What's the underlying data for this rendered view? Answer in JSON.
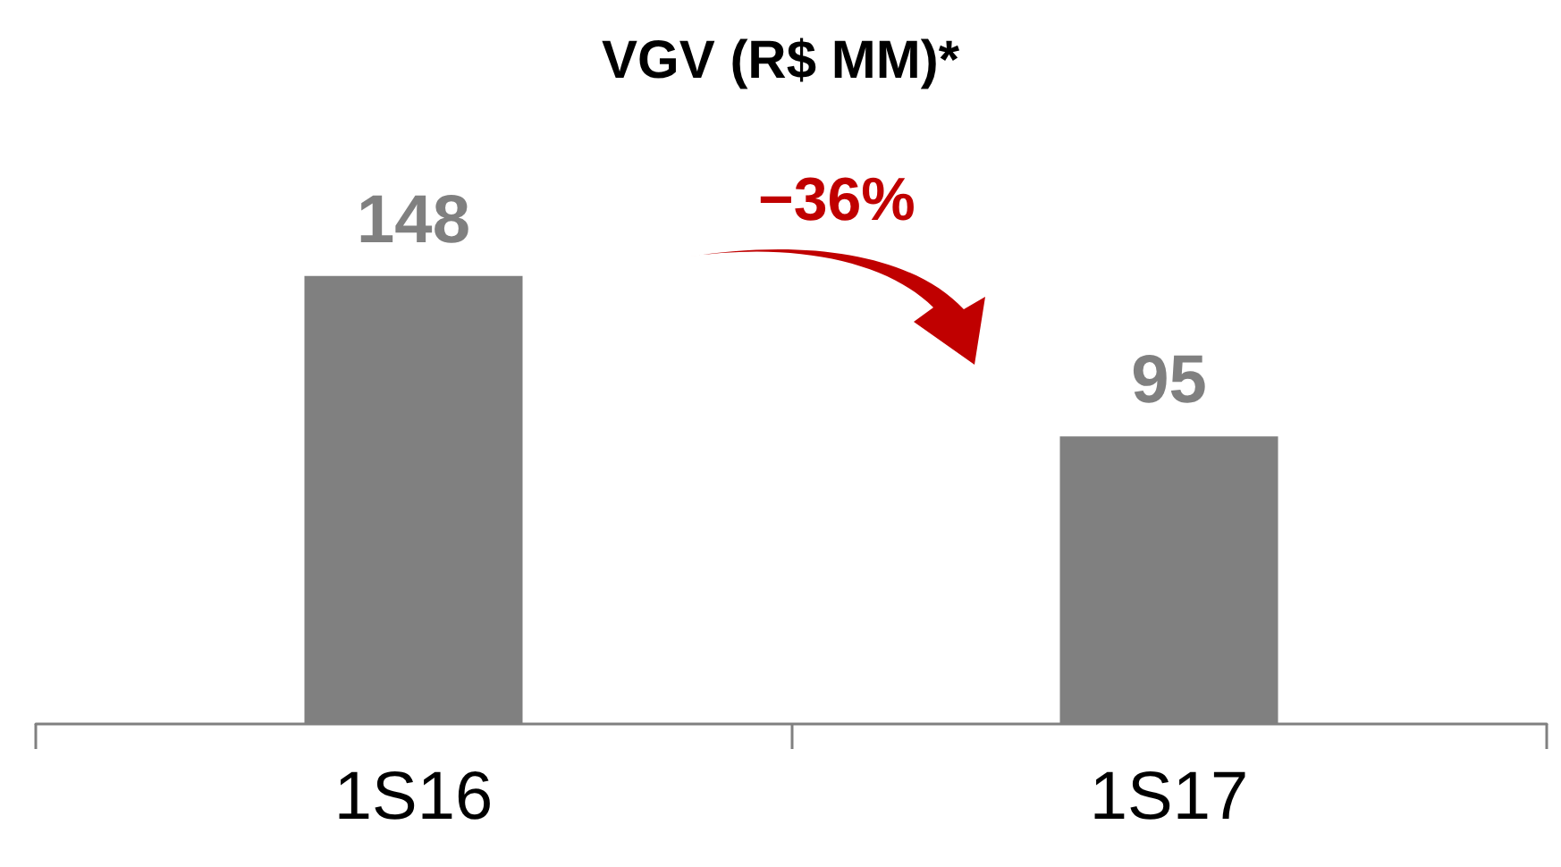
{
  "chart_data": {
    "type": "bar",
    "title": "VGV (R$ MM)*",
    "categories": [
      "1S16",
      "1S17"
    ],
    "values": [
      148,
      95
    ],
    "color": "#808080",
    "data_labels": true,
    "tick_labels": "x",
    "annotations": [
      "−36%"
    ]
  }
}
